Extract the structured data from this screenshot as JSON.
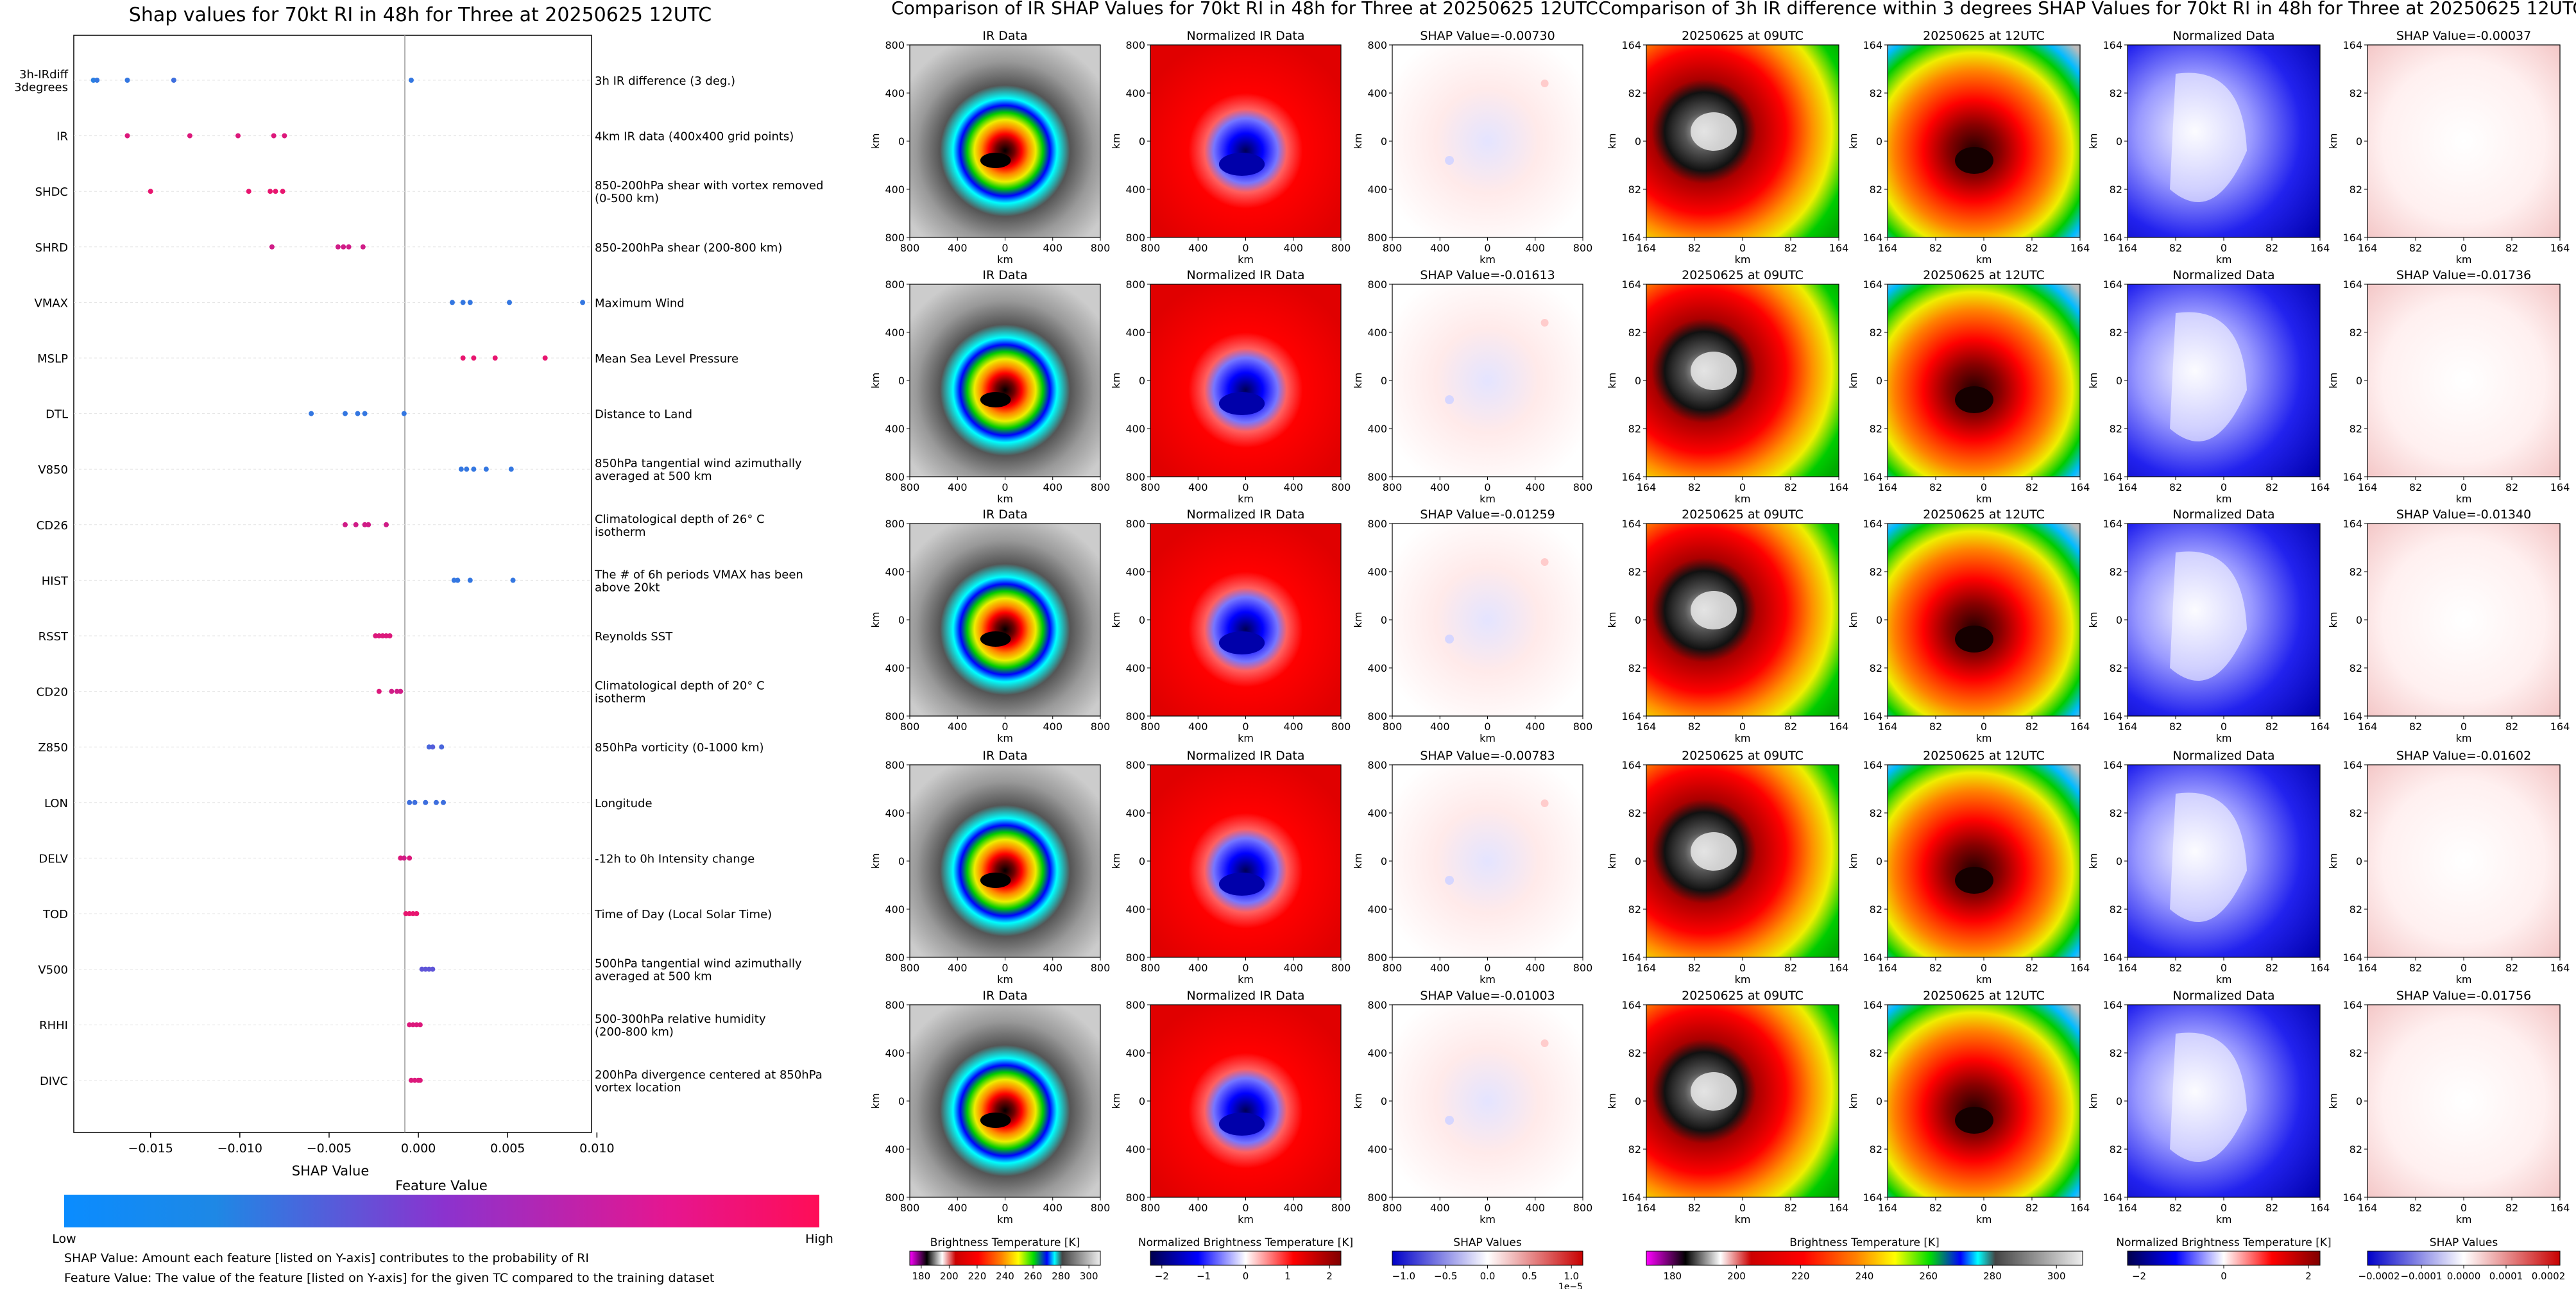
{
  "summary": {
    "title": "Shap values for 70kt RI in 48h for Three at 20250625 12UTC",
    "xlabel": "SHAP Value",
    "xticks": [
      "−0.015",
      "−0.010",
      "−0.005",
      "0.000",
      "0.005",
      "0.010"
    ],
    "colorbar_title": "Feature Value",
    "colorbar_low": "Low",
    "colorbar_high": "High",
    "notes": [
      "SHAP Value: Amount each feature [listed on Y-axis] contributes to the probability of RI",
      "Feature Value: The value of the feature [listed on Y-axis] for the given TC compared to the training dataset"
    ],
    "color_low": "#1e88e5",
    "color_high": "#ff0d57"
  },
  "chart_data": [
    {
      "type": "scatter",
      "title": "Shap values for 70kt RI in 48h for Three at 20250625 12UTC",
      "xlabel": "SHAP Value",
      "xlim": [
        -0.0193,
        0.0097
      ],
      "features": [
        {
          "name": "3h-IRdiff 3degrees",
          "desc": "3h IR difference (3 deg.)",
          "points": [
            [
              -0.0182,
              0.05
            ],
            [
              -0.018,
              0.1
            ],
            [
              -0.0163,
              0.1
            ],
            [
              -0.0137,
              0.15
            ],
            [
              -0.0004,
              0.1
            ]
          ]
        },
        {
          "name": "IR",
          "desc": "4km IR data (400x400 grid points)",
          "points": [
            [
              -0.0163,
              0.85
            ],
            [
              -0.0128,
              0.85
            ],
            [
              -0.0101,
              0.85
            ],
            [
              -0.0081,
              0.85
            ],
            [
              -0.0075,
              0.85
            ]
          ]
        },
        {
          "name": "SHDC",
          "desc": "850-200hPa shear with vortex removed (0-500 km)",
          "points": [
            [
              -0.015,
              0.9
            ],
            [
              -0.0095,
              0.9
            ],
            [
              -0.0083,
              0.9
            ],
            [
              -0.008,
              0.9
            ],
            [
              -0.0076,
              0.9
            ]
          ]
        },
        {
          "name": "SHRD",
          "desc": "850-200hPa shear (200-800 km)",
          "points": [
            [
              -0.0082,
              0.8
            ],
            [
              -0.0045,
              0.8
            ],
            [
              -0.0042,
              0.8
            ],
            [
              -0.0039,
              0.8
            ],
            [
              -0.0031,
              0.8
            ]
          ]
        },
        {
          "name": "VMAX",
          "desc": "Maximum Wind",
          "points": [
            [
              0.0019,
              0.1
            ],
            [
              0.0025,
              0.1
            ],
            [
              0.0029,
              0.1
            ],
            [
              0.0051,
              0.1
            ],
            [
              0.0092,
              0.1
            ]
          ]
        },
        {
          "name": "MSLP",
          "desc": "Mean Sea Level Pressure",
          "points": [
            [
              0.0025,
              0.9
            ],
            [
              0.0031,
              0.9
            ],
            [
              0.0043,
              0.9
            ],
            [
              0.0071,
              0.9
            ]
          ]
        },
        {
          "name": "DTL",
          "desc": "Distance to Land",
          "points": [
            [
              -0.006,
              0.1
            ],
            [
              -0.0041,
              0.1
            ],
            [
              -0.0034,
              0.1
            ],
            [
              -0.003,
              0.1
            ],
            [
              -0.0008,
              0.1
            ]
          ]
        },
        {
          "name": "V850",
          "desc": "850hPa tangential wind azimuthally averaged at 500 km",
          "points": [
            [
              0.0024,
              0.1
            ],
            [
              0.0027,
              0.1
            ],
            [
              0.0031,
              0.1
            ],
            [
              0.0038,
              0.1
            ],
            [
              0.0052,
              0.1
            ]
          ]
        },
        {
          "name": "CD26",
          "desc": "Climatological depth of 26° C isotherm",
          "points": [
            [
              -0.0041,
              0.8
            ],
            [
              -0.0035,
              0.8
            ],
            [
              -0.003,
              0.8
            ],
            [
              -0.0028,
              0.8
            ],
            [
              -0.0018,
              0.8
            ]
          ]
        },
        {
          "name": "HIST",
          "desc": "The # of 6h periods VMAX has been above 20kt",
          "points": [
            [
              0.002,
              0.1
            ],
            [
              0.0022,
              0.1
            ],
            [
              0.0029,
              0.1
            ],
            [
              0.0053,
              0.1
            ]
          ]
        },
        {
          "name": "RSST",
          "desc": "Reynolds SST",
          "points": [
            [
              -0.0024,
              0.85
            ],
            [
              -0.0022,
              0.85
            ],
            [
              -0.002,
              0.85
            ],
            [
              -0.0018,
              0.85
            ],
            [
              -0.0016,
              0.85
            ]
          ]
        },
        {
          "name": "CD20",
          "desc": "Climatological depth of 20° C isotherm",
          "points": [
            [
              -0.0022,
              0.85
            ],
            [
              -0.0015,
              0.8
            ],
            [
              -0.0012,
              0.8
            ],
            [
              -0.001,
              0.8
            ]
          ]
        },
        {
          "name": "Z850",
          "desc": "850hPa vorticity (0-1000 km)",
          "points": [
            [
              0.0006,
              0.2
            ],
            [
              0.0008,
              0.25
            ],
            [
              0.0013,
              0.2
            ]
          ]
        },
        {
          "name": "LON",
          "desc": "Longitude",
          "points": [
            [
              -0.0005,
              0.15
            ],
            [
              -0.0002,
              0.15
            ],
            [
              0.0004,
              0.15
            ],
            [
              0.001,
              0.15
            ],
            [
              0.0014,
              0.15
            ]
          ]
        },
        {
          "name": "DELV",
          "desc": "-12h to 0h Intensity change",
          "points": [
            [
              -0.001,
              0.85
            ],
            [
              -0.0008,
              0.8
            ],
            [
              -0.0005,
              0.85
            ]
          ]
        },
        {
          "name": "TOD",
          "desc": "Time of Day (Local Solar Time)",
          "points": [
            [
              -0.0007,
              0.9
            ],
            [
              -0.0005,
              0.9
            ],
            [
              -0.0003,
              0.9
            ],
            [
              -0.0001,
              0.9
            ]
          ]
        },
        {
          "name": "V500",
          "desc": "500hPa tangential wind azimuthally averaged at 500 km",
          "points": [
            [
              0.0002,
              0.3
            ],
            [
              0.0004,
              0.3
            ],
            [
              0.0006,
              0.3
            ],
            [
              0.0008,
              0.3
            ]
          ]
        },
        {
          "name": "RHHI",
          "desc": "500-300hPa relative humidity (200-800 km)",
          "points": [
            [
              -0.0005,
              0.85
            ],
            [
              -0.0003,
              0.85
            ],
            [
              -0.0001,
              0.85
            ],
            [
              0.0001,
              0.85
            ]
          ]
        },
        {
          "name": "DIVC",
          "desc": "200hPa divergence centered at 850hPa vortex location",
          "points": [
            [
              -0.0004,
              0.85
            ],
            [
              -0.0002,
              0.85
            ],
            [
              0.0,
              0.85
            ],
            [
              0.0001,
              0.85
            ]
          ]
        }
      ]
    },
    {
      "type": "heatmap",
      "title": "Comparison of IR SHAP Values for 70kt RI in 48h for Three at 20250625 12UTC",
      "columns": [
        "IR Data",
        "Normalized IR Data",
        "SHAP Value"
      ],
      "rows": 5,
      "shap_values": [
        "-0.00730",
        "-0.01613",
        "-0.01259",
        "-0.00783",
        "-0.01003"
      ],
      "xlabel": "km",
      "ylabel": "km",
      "xticks": [
        "800",
        "400",
        "0",
        "400",
        "800"
      ],
      "yticks": [
        "800",
        "400",
        "0",
        "400",
        "800"
      ],
      "colorbars": [
        {
          "label": "Brightness Temperature [K]",
          "ticks": [
            "180",
            "200",
            "220",
            "240",
            "260",
            "280",
            "300"
          ]
        },
        {
          "label": "Normalized Brightness Temperature [K]",
          "ticks": [
            "−2",
            "−1",
            "0",
            "1",
            "2"
          ]
        },
        {
          "label": "SHAP Values",
          "ticks": [
            "−1.0",
            "−0.5",
            "0.0",
            "0.5",
            "1.0"
          ],
          "offset": "1e−5"
        }
      ]
    },
    {
      "type": "heatmap",
      "title": "Comparison of 3h IR difference within 3 degrees SHAP Values for 70kt RI in 48h for Three at 20250625 12UTC",
      "columns": [
        "20250625 at 09UTC",
        "20250625 at 12UTC",
        "Normalized Data",
        "SHAP Value"
      ],
      "rows": 5,
      "shap_values": [
        "-0.00037",
        "-0.01736",
        "-0.01340",
        "-0.01602",
        "-0.01756"
      ],
      "xlabel": "km",
      "ylabel": "km",
      "xticks": [
        "164",
        "82",
        "0",
        "82",
        "164"
      ],
      "yticks": [
        "164",
        "82",
        "0",
        "82",
        "164"
      ],
      "colorbars": [
        {
          "label": "Brightness Temperature [K]",
          "ticks": [
            "180",
            "200",
            "220",
            "240",
            "260",
            "280",
            "300"
          ]
        },
        {
          "label": "Normalized Brightness Temperature [K]",
          "ticks": [
            "−2",
            "0",
            "2"
          ]
        },
        {
          "label": "SHAP Values",
          "ticks": [
            "−0.0002",
            "−0.0001",
            "0.0000",
            "0.0001",
            "0.0002"
          ]
        }
      ]
    }
  ]
}
